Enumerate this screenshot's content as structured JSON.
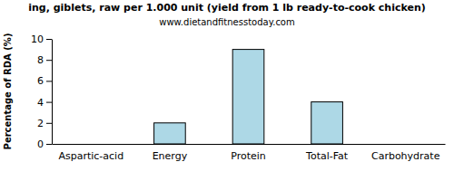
{
  "chart_data": {
    "type": "bar",
    "title": "ing, giblets, raw per 1.000 unit (yield from 1 lb ready-to-cook chicken)",
    "subtitle": "www.dietandfitnesstoday.com",
    "y_label": "Percentage of RDA (%)",
    "categories": [
      "Aspartic-acid",
      "Energy",
      "Protein",
      "Total-Fat",
      "Carbohydrate"
    ],
    "values": [
      0,
      2,
      9,
      4,
      0
    ],
    "color": "#add8e6",
    "ylim": [
      0,
      10
    ],
    "yticks": [
      0,
      2,
      4,
      6,
      8,
      10
    ],
    "grid": false
  }
}
